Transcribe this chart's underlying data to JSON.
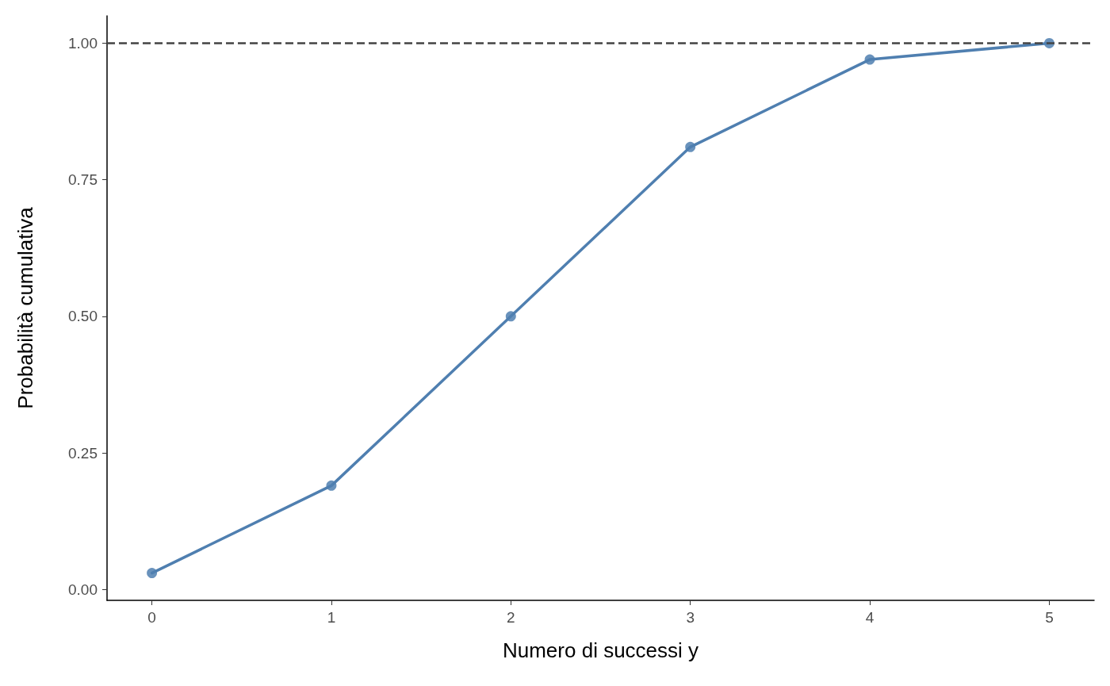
{
  "chart_data": {
    "type": "line",
    "xlabel": "Numero di successi y",
    "ylabel": "Probabilità cumulativa",
    "x": [
      0,
      1,
      2,
      3,
      4,
      5
    ],
    "series": [
      {
        "color": "#4f7fb0",
        "values": [
          0.03,
          0.19,
          0.5,
          0.81,
          0.97,
          1.0
        ]
      }
    ],
    "xlim": [
      -0.25,
      5.25
    ],
    "xticks": [
      0,
      1,
      2,
      3,
      4,
      5
    ],
    "ylim": [
      -0.02,
      1.05
    ],
    "yticks": [
      {
        "value": 0,
        "label": "0.00"
      },
      {
        "value": 0.25,
        "label": "0.25"
      },
      {
        "value": 0.5,
        "label": "0.50"
      },
      {
        "value": 0.75,
        "label": "0.75"
      },
      {
        "value": 1,
        "label": "1.00"
      }
    ],
    "ref_lines": [
      {
        "axis": "y",
        "value": 1,
        "color": "#444444",
        "line_style": "dashed"
      }
    ],
    "grid": false,
    "marker": "circle",
    "line_style": "solid"
  }
}
